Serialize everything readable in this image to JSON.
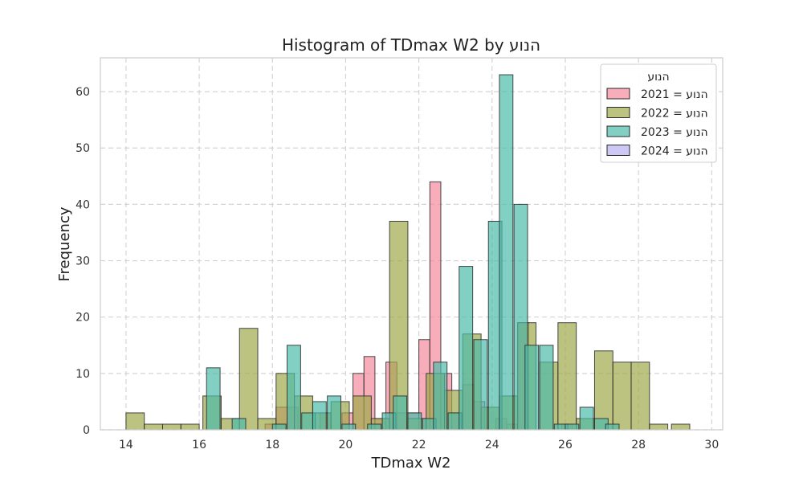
{
  "chart_data": {
    "type": "bar",
    "title": "Histogram of TDmax W2 by הנוע",
    "xlabel": "TDmax W2",
    "ylabel": "Frequency",
    "xlim": [
      13.3,
      30.3
    ],
    "ylim": [
      0,
      66
    ],
    "xticks": [
      14,
      16,
      18,
      20,
      22,
      24,
      26,
      28,
      30
    ],
    "yticks": [
      0,
      10,
      20,
      30,
      40,
      50,
      60
    ],
    "grid": true,
    "legend": {
      "title": "הנוע",
      "placement": "top-right",
      "entries": [
        "הנוע = 2021",
        "הנוע = 2022",
        "הנוע = 2023",
        "הנוע = 2024"
      ]
    },
    "series": [
      {
        "name": "הנוע = 2021",
        "color": "#f48a9c",
        "bin_width": 0.3,
        "bins": [
          [
            17.8,
            1
          ],
          [
            18.1,
            4
          ],
          [
            18.4,
            4
          ],
          [
            19.3,
            3
          ],
          [
            19.9,
            3
          ],
          [
            20.2,
            10
          ],
          [
            20.5,
            13
          ],
          [
            20.8,
            2
          ],
          [
            21.1,
            12
          ],
          [
            21.4,
            3
          ],
          [
            21.7,
            3
          ],
          [
            22.0,
            16
          ],
          [
            22.3,
            44
          ],
          [
            22.6,
            10
          ],
          [
            22.9,
            3
          ],
          [
            23.2,
            8
          ],
          [
            23.5,
            5
          ],
          [
            24.1,
            2
          ],
          [
            24.4,
            1
          ],
          [
            24.7,
            19
          ],
          [
            25.9,
            1
          ]
        ]
      },
      {
        "name": "הנוע = 2022",
        "color": "#a0a84a",
        "bin_width": 0.5,
        "bins": [
          [
            14.0,
            3
          ],
          [
            14.5,
            1
          ],
          [
            15.0,
            1
          ],
          [
            15.5,
            1
          ],
          [
            16.1,
            6
          ],
          [
            16.6,
            2
          ],
          [
            17.1,
            18
          ],
          [
            17.6,
            2
          ],
          [
            18.1,
            10
          ],
          [
            18.6,
            6
          ],
          [
            19.1,
            3
          ],
          [
            19.6,
            5
          ],
          [
            20.2,
            6
          ],
          [
            20.7,
            2
          ],
          [
            21.2,
            37
          ],
          [
            21.7,
            2
          ],
          [
            22.2,
            10
          ],
          [
            22.7,
            7
          ],
          [
            23.2,
            17
          ],
          [
            23.7,
            4
          ],
          [
            24.2,
            6
          ],
          [
            24.7,
            19
          ],
          [
            25.3,
            12
          ],
          [
            25.8,
            19
          ],
          [
            26.3,
            2
          ],
          [
            26.8,
            14
          ],
          [
            27.3,
            12
          ],
          [
            27.8,
            12
          ],
          [
            28.3,
            1
          ],
          [
            28.9,
            1
          ]
        ]
      },
      {
        "name": "הנוע = 2023",
        "color": "#4dbbaa",
        "bin_width": 0.37,
        "bins": [
          [
            16.2,
            11
          ],
          [
            16.9,
            2
          ],
          [
            18.0,
            1
          ],
          [
            18.4,
            15
          ],
          [
            18.8,
            3
          ],
          [
            19.1,
            5
          ],
          [
            19.5,
            6
          ],
          [
            19.9,
            1
          ],
          [
            20.6,
            1
          ],
          [
            21.0,
            3
          ],
          [
            21.3,
            6
          ],
          [
            21.7,
            3
          ],
          [
            22.1,
            2
          ],
          [
            22.4,
            12
          ],
          [
            22.8,
            3
          ],
          [
            23.1,
            29
          ],
          [
            23.5,
            16
          ],
          [
            23.9,
            37
          ],
          [
            24.2,
            63
          ],
          [
            24.6,
            40
          ],
          [
            24.9,
            15
          ],
          [
            25.3,
            15
          ],
          [
            25.7,
            1
          ],
          [
            26.0,
            1
          ],
          [
            26.4,
            4
          ],
          [
            26.8,
            2
          ],
          [
            27.1,
            1
          ]
        ]
      },
      {
        "name": "הנוע = 2024",
        "color": "#b8b0f0",
        "bin_width": 0.3,
        "bins": []
      }
    ]
  }
}
